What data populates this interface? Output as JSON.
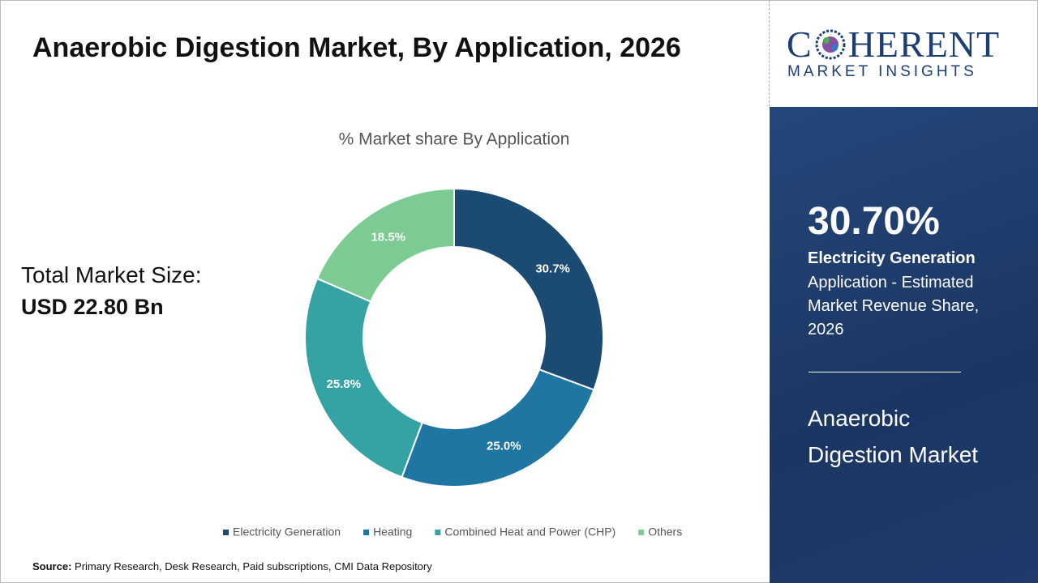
{
  "header": {
    "title": "Anaerobic Digestion Market, By Application, 2026"
  },
  "market_size": {
    "label": "Total Market Size:",
    "value": "USD 22.80 Bn"
  },
  "chart_data": {
    "type": "donut",
    "title": "% Market share By Application",
    "categories": [
      "Electricity Generation",
      "Heating",
      "Combined Heat and Power (CHP)",
      "Others"
    ],
    "values": [
      30.7,
      25.0,
      25.8,
      18.5
    ],
    "value_labels": [
      "30.7%",
      "25.0%",
      "25.8%",
      "18.5%"
    ],
    "colors": [
      "#1b4b72",
      "#1f76a3",
      "#35a2a3",
      "#7ccb93"
    ],
    "legend": "bottom"
  },
  "source": {
    "label": "Source:",
    "text": "Primary Research, Desk Research, Paid subscriptions, CMI Data Repository"
  },
  "logo": {
    "left": "C",
    "right": "HERENT",
    "tagline": "MARKET INSIGHTS"
  },
  "panel": {
    "highlight": "30.70%",
    "segment": "Electricity Generation",
    "description": "Application - Estimated Market Revenue Share, 2026",
    "market": "Anaerobic Digestion Market"
  }
}
